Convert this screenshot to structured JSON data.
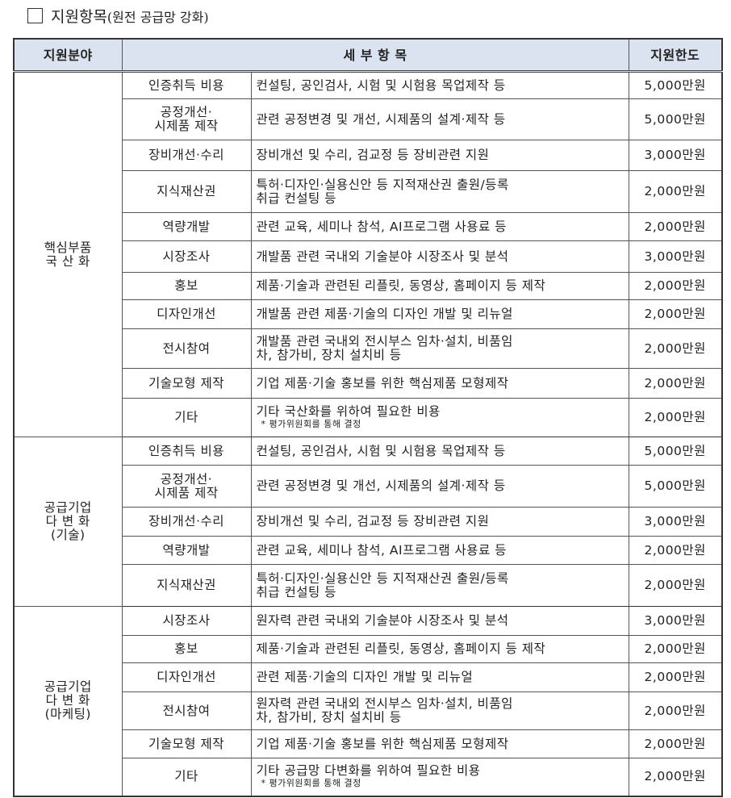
{
  "title": {
    "main": "지원항목",
    "sub": "(원전 공급망 강화)"
  },
  "headers": [
    "지원분야",
    "세 부 항 목",
    "지원한도"
  ],
  "sections": [
    {
      "category": "핵심부품\n국 산 화",
      "rows": [
        {
          "item": "인증취득 비용",
          "detail": "컨설팅, 공인검사, 시험 및 시험용 목업제작 등",
          "limit": "5,000만원"
        },
        {
          "item": "공정개선·\n시제품 제작",
          "detail": "관련 공정변경 및 개선, 시제품의 설계·제작 등",
          "limit": "5,000만원"
        },
        {
          "item": "장비개선·수리",
          "detail": "장비개선 및 수리, 검교정 등 장비관련 지원",
          "limit": "3,000만원"
        },
        {
          "item": "지식재산권",
          "detail": "특허·디자인·실용신안 등 지적재산권 출원/등록\n취급 컨설팅 등",
          "limit": "2,000만원"
        },
        {
          "item": "역량개발",
          "detail": "관련 교육, 세미나 참석, AI프로그램 사용료 등",
          "limit": "2,000만원"
        },
        {
          "item": "시장조사",
          "detail": "개발품 관련 국내외 기술분야 시장조사 및 분석",
          "limit": "3,000만원"
        },
        {
          "item": "홍보",
          "detail": "제품·기술과 관련된 리플릿, 동영상, 홈페이지 등 제작",
          "limit": "2,000만원"
        },
        {
          "item": "디자인개선",
          "detail": "개발품 관련 제품·기술의 디자인 개발 및 리뉴얼",
          "limit": "2,000만원"
        },
        {
          "item": "전시참여",
          "detail": "개발품 관련 국내외 전시부스 임차·설치, 비품임\n차, 참가비, 장치 설치비 등",
          "limit": "2,000만원"
        },
        {
          "item": "기술모형 제작",
          "detail": "기업 제품·기술 홍보를 위한 핵심제품 모형제작",
          "limit": "2,000만원"
        },
        {
          "item": "기타",
          "detail": "기타 국산화를 위하여 필요한 비용",
          "note": "* 평가위원회를 통해 결정",
          "limit": "2,000만원"
        }
      ]
    },
    {
      "category": "공급기업\n다 변 화\n(기술)",
      "rows": [
        {
          "item": "인증취득 비용",
          "detail": "컨설팅, 공인검사, 시험 및 시험용 목업제작 등",
          "limit": "5,000만원"
        },
        {
          "item": "공정개선·\n시제품 제작",
          "detail": "관련 공정변경 및 개선, 시제품의 설계·제작 등",
          "limit": "5,000만원"
        },
        {
          "item": "장비개선·수리",
          "detail": "장비개선 및 수리, 검교정 등 장비관련 지원",
          "limit": "3,000만원"
        },
        {
          "item": "역량개발",
          "detail": "관련 교육, 세미나 참석, AI프로그램 사용료 등",
          "limit": "2,000만원"
        },
        {
          "item": "지식재산권",
          "detail": "특허·디자인·실용신안 등 지적재산권 출원/등록\n취급 컨설팅 등",
          "limit": "2,000만원"
        }
      ]
    },
    {
      "category": "공급기업\n다 변 화\n(마케팅)",
      "rows": [
        {
          "item": "시장조사",
          "detail": "원자력 관련 국내외 기술분야 시장조사 및 분석",
          "limit": "3,000만원"
        },
        {
          "item": "홍보",
          "detail": "제품·기술과 관련된 리플릿, 동영상, 홈페이지 등 제작",
          "limit": "2,000만원"
        },
        {
          "item": "디자인개선",
          "detail": "관련 제품·기술의 디자인 개발 및 리뉴얼",
          "limit": "2,000만원"
        },
        {
          "item": "전시참여",
          "detail": "원자력 관련 국내외 전시부스 임차·설치, 비품임\n차, 참가비, 장치 설치비 등",
          "limit": "2,000만원"
        },
        {
          "item": "기술모형 제작",
          "detail": "기업 제품·기술 홍보를 위한 핵심제품 모형제작",
          "limit": "2,000만원"
        },
        {
          "item": "기타",
          "detail": "기타 공급망 다변화를 위하여 필요한 비용",
          "note": "* 평가위원회를 통해 결정",
          "limit": "2,000만원"
        }
      ]
    }
  ]
}
